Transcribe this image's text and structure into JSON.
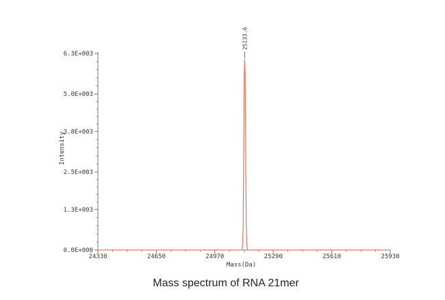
{
  "chart_data": {
    "type": "line",
    "title": "",
    "xlabel": "Mass(Da)",
    "ylabel": "Intensity",
    "xlim": [
      24330,
      25930
    ],
    "ylim": [
      0,
      6300
    ],
    "x_ticks": [
      24330,
      24650,
      24970,
      25290,
      25610,
      25930
    ],
    "x_tick_labels": [
      "24330",
      "24650",
      "24970",
      "25290",
      "25610",
      "25930"
    ],
    "y_ticks": [
      0,
      1300,
      2500,
      3800,
      5000,
      6300
    ],
    "y_tick_labels": [
      "0.0E+000",
      "1.3E+003",
      "2.5E+003",
      "3.8E+003",
      "5.0E+003",
      "6.3E+003"
    ],
    "grid": false,
    "series": [
      {
        "color": "#e8735a",
        "x": [
          24330,
          25118,
          25122,
          25125,
          25127,
          25129,
          25131,
          25133.6,
          25136,
          25138,
          25140,
          25142,
          25145,
          25150,
          25930
        ],
        "y": [
          0,
          0,
          120,
          700,
          2200,
          4200,
          5600,
          6100,
          5600,
          4200,
          2300,
          800,
          150,
          0,
          0
        ]
      }
    ],
    "annotations": [
      {
        "x": 25133.6,
        "y": 6100,
        "text": "25133.6"
      }
    ]
  },
  "caption": "Mass spectrum of RNA 21mer",
  "colors": {
    "line": "#e8735a",
    "axis": "#777777"
  }
}
